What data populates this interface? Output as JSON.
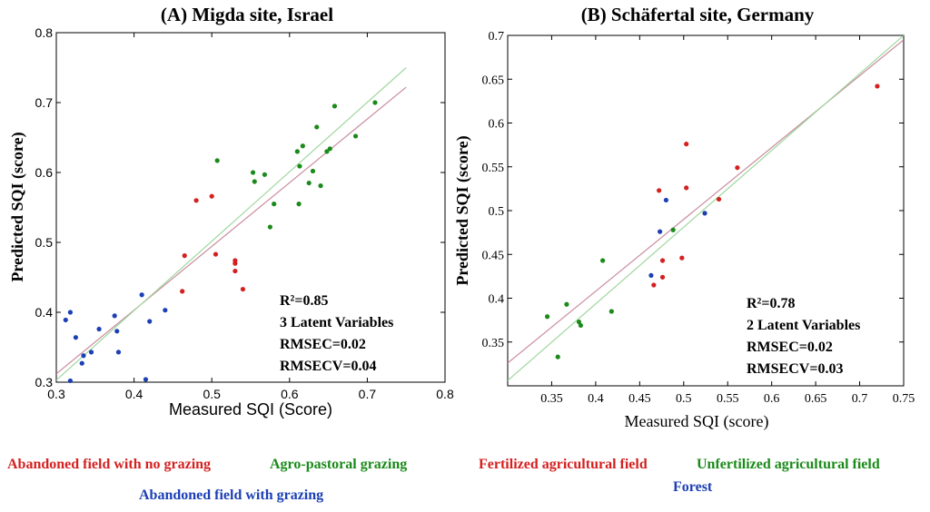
{
  "chart_data": [
    {
      "type": "scatter",
      "title": "(A) Migda site, Israel",
      "xlabel": "Measured SQI (Score)",
      "ylabel": "Predicted SQI (score)",
      "xlim": [
        0.3,
        0.8
      ],
      "ylim": [
        0.3,
        0.8
      ],
      "x_ticks": [
        "0.3",
        "0.4",
        "0.5",
        "0.6",
        "0.7",
        "0.8"
      ],
      "y_ticks": [
        "0.3",
        "0.4",
        "0.5",
        "0.6",
        "0.7",
        "0.8"
      ],
      "stats": [
        "R²=0.85",
        "3 Latent Variables",
        "RMSEC=0.02",
        "RMSECV=0.04"
      ],
      "lines": [
        {
          "color": "#c98c9e",
          "from": [
            0.3,
            0.312
          ],
          "to": [
            0.75,
            0.722
          ]
        },
        {
          "color": "#9fd79f",
          "from": [
            0.3,
            0.303
          ],
          "to": [
            0.75,
            0.75
          ]
        }
      ],
      "series": [
        {
          "name": "Abandoned field with no grazing",
          "color": "#d42020",
          "x": [
            0.48,
            0.5,
            0.465,
            0.462,
            0.505,
            0.53,
            0.53,
            0.54,
            0.53
          ],
          "y": [
            0.56,
            0.566,
            0.481,
            0.43,
            0.483,
            0.474,
            0.459,
            0.433,
            0.47
          ]
        },
        {
          "name": "Agro-pastoral grazing",
          "color": "#1a8a1a",
          "x": [
            0.507,
            0.553,
            0.555,
            0.568,
            0.58,
            0.575,
            0.61,
            0.613,
            0.617,
            0.612,
            0.625,
            0.63,
            0.635,
            0.64,
            0.648,
            0.652,
            0.658,
            0.685,
            0.71
          ],
          "y": [
            0.617,
            0.6,
            0.587,
            0.597,
            0.555,
            0.522,
            0.63,
            0.609,
            0.638,
            0.555,
            0.585,
            0.602,
            0.665,
            0.581,
            0.63,
            0.634,
            0.695,
            0.652,
            0.7
          ]
        },
        {
          "name": "Abandoned field with grazing",
          "color": "#1c3fb5",
          "x": [
            0.312,
            0.318,
            0.325,
            0.333,
            0.335,
            0.345,
            0.355,
            0.375,
            0.378,
            0.38,
            0.41,
            0.415,
            0.42,
            0.44,
            0.318
          ],
          "y": [
            0.389,
            0.4,
            0.364,
            0.327,
            0.338,
            0.343,
            0.376,
            0.395,
            0.373,
            0.343,
            0.425,
            0.304,
            0.387,
            0.403,
            0.302
          ]
        }
      ],
      "legend": [
        "Abandoned field with no grazing",
        "Agro-pastoral grazing",
        "Abandoned field with grazing"
      ]
    },
    {
      "type": "scatter",
      "title": "(B) Schäfertal site, Germany",
      "xlabel": "Measured SQI (score)",
      "ylabel": "Predicted SQI (score)",
      "xlim": [
        0.3,
        0.75
      ],
      "ylim": [
        0.3,
        0.7
      ],
      "x_ticks": [
        "0.35",
        "0.4",
        "0.45",
        "0.5",
        "0.55",
        "0.6",
        "0.65",
        "0.7",
        "0.75"
      ],
      "y_ticks": [
        "0.35",
        "0.4",
        "0.45",
        "0.5",
        "0.55",
        "0.6",
        "0.65",
        "0.7"
      ],
      "stats": [
        "R²=0.78",
        "2 Latent Variables",
        "RMSEC=0.02",
        "RMSECV=0.03"
      ],
      "lines": [
        {
          "color": "#c98c9e",
          "from": [
            0.3,
            0.326
          ],
          "to": [
            0.75,
            0.695
          ]
        },
        {
          "color": "#9fd79f",
          "from": [
            0.3,
            0.306
          ],
          "to": [
            0.75,
            0.7
          ]
        }
      ],
      "series": [
        {
          "name": "Fertilized agricultural field",
          "color": "#d42020",
          "x": [
            0.466,
            0.472,
            0.476,
            0.476,
            0.498,
            0.503,
            0.503,
            0.54,
            0.561,
            0.72
          ],
          "y": [
            0.415,
            0.523,
            0.443,
            0.424,
            0.446,
            0.576,
            0.526,
            0.513,
            0.549,
            0.642
          ]
        },
        {
          "name": "Unfertilized agricultural field",
          "color": "#1a8a1a",
          "x": [
            0.345,
            0.357,
            0.367,
            0.381,
            0.383,
            0.408,
            0.418,
            0.488
          ],
          "y": [
            0.379,
            0.333,
            0.393,
            0.373,
            0.369,
            0.443,
            0.385,
            0.478
          ]
        },
        {
          "name": "Forest",
          "color": "#1c3fb5",
          "x": [
            0.463,
            0.473,
            0.48,
            0.524
          ],
          "y": [
            0.426,
            0.476,
            0.512,
            0.497
          ]
        }
      ],
      "legend": [
        "Fertilized agricultural field",
        "Unfertilized agricultural field",
        "Forest"
      ]
    }
  ]
}
